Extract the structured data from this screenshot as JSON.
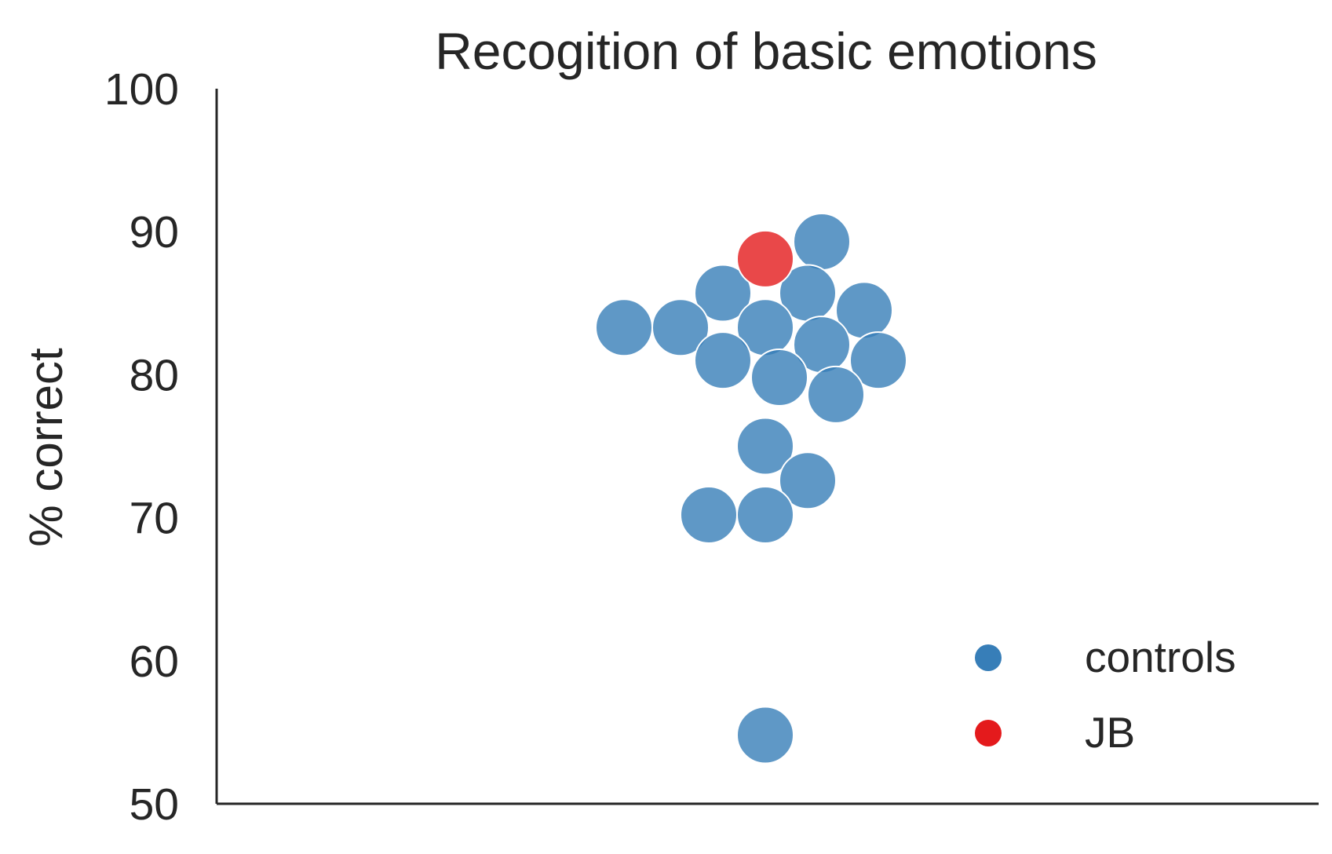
{
  "chart_data": {
    "type": "scatter",
    "title": "Recogition of basic emotions",
    "xlabel": "",
    "ylabel": "% correct",
    "ylim": [
      50,
      100
    ],
    "yticks": [
      "50",
      "60",
      "70",
      "80",
      "90",
      "100"
    ],
    "grid": false,
    "legend_position": "bottom-right",
    "series": [
      {
        "name": "controls",
        "color": "#377eb8",
        "values": [
          89.3,
          85.7,
          84.5,
          85.7,
          83.3,
          83.3,
          83.3,
          82.1,
          81.0,
          81.0,
          79.8,
          78.6,
          75.0,
          72.6,
          70.2,
          70.2,
          54.8
        ]
      },
      {
        "name": "JB",
        "color": "#e41a1c",
        "values": [
          88.1
        ]
      }
    ]
  }
}
